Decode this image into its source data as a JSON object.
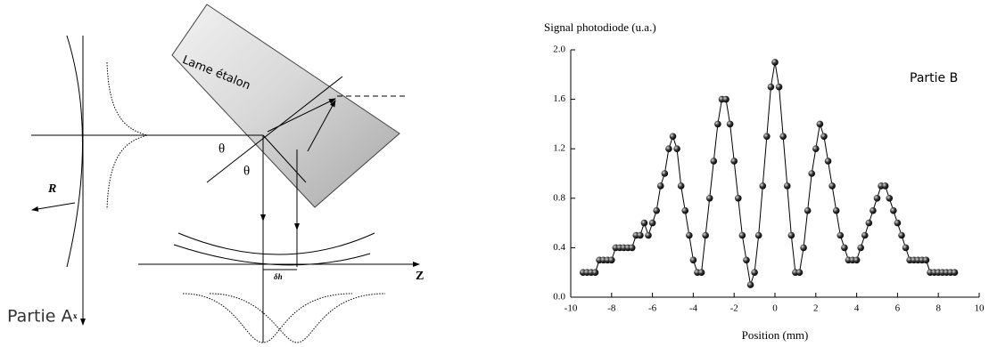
{
  "diagram": {
    "plate_label": "Lame étalon",
    "theta_1": "θ",
    "theta_2": "θ",
    "r_label": "R",
    "x_label": "x",
    "z_label": "Z",
    "dh_label": "δh",
    "part_label": "Partie A"
  },
  "chart_data": {
    "type": "scatter_line",
    "y_label": "Signal photodiode (u.a.)",
    "x_label": "Position (mm)",
    "annotation": "Partie B",
    "color": "#000000",
    "x": [
      -9.4,
      -9.2,
      -9.0,
      -8.8,
      -8.6,
      -8.4,
      -8.2,
      -8.0,
      -7.8,
      -7.6,
      -7.4,
      -7.2,
      -7.0,
      -6.8,
      -6.6,
      -6.4,
      -6.2,
      -6.0,
      -5.8,
      -5.6,
      -5.4,
      -5.2,
      -5.0,
      -4.8,
      -4.6,
      -4.4,
      -4.2,
      -4.0,
      -3.8,
      -3.6,
      -3.4,
      -3.2,
      -3.0,
      -2.8,
      -2.6,
      -2.4,
      -2.2,
      -2.0,
      -1.8,
      -1.6,
      -1.4,
      -1.2,
      -1.0,
      -0.8,
      -0.6,
      -0.4,
      -0.2,
      0,
      0.2,
      0.4,
      0.6,
      0.8,
      1.0,
      1.2,
      1.4,
      1.6,
      1.8,
      2.0,
      2.2,
      2.4,
      2.6,
      2.8,
      3.0,
      3.2,
      3.4,
      3.6,
      3.8,
      4.0,
      4.2,
      4.4,
      4.6,
      4.8,
      5.0,
      5.2,
      5.4,
      5.6,
      5.8,
      6.0,
      6.2,
      6.4,
      6.6,
      6.8,
      7.0,
      7.2,
      7.4,
      7.6,
      7.8,
      8.0,
      8.2,
      8.4,
      8.6,
      8.8
    ],
    "values": [
      0.2,
      0.2,
      0.2,
      0.2,
      0.3,
      0.3,
      0.3,
      0.3,
      0.4,
      0.4,
      0.4,
      0.4,
      0.4,
      0.5,
      0.5,
      0.6,
      0.5,
      0.6,
      0.7,
      0.9,
      1.0,
      1.2,
      1.3,
      1.2,
      0.9,
      0.7,
      0.5,
      0.3,
      0.2,
      0.2,
      0.5,
      0.8,
      1.1,
      1.4,
      1.6,
      1.6,
      1.4,
      1.1,
      0.8,
      0.5,
      0.3,
      0.1,
      0.2,
      0.5,
      0.9,
      1.3,
      1.7,
      1.9,
      1.7,
      1.3,
      0.9,
      0.5,
      0.2,
      0.2,
      0.4,
      0.7,
      1.0,
      1.2,
      1.4,
      1.3,
      1.1,
      0.9,
      0.7,
      0.5,
      0.4,
      0.3,
      0.3,
      0.3,
      0.4,
      0.5,
      0.6,
      0.7,
      0.8,
      0.9,
      0.9,
      0.8,
      0.7,
      0.6,
      0.5,
      0.4,
      0.3,
      0.3,
      0.3,
      0.3,
      0.3,
      0.2,
      0.2,
      0.2,
      0.2,
      0.2,
      0.2,
      0.2
    ],
    "xlim": [
      -10,
      10
    ],
    "xticks": [
      -10,
      -8,
      -6,
      -4,
      -2,
      0,
      2,
      4,
      6,
      8,
      10
    ],
    "ylim": [
      0,
      2
    ],
    "yticks": [
      {
        "value": 0,
        "label": "0.0"
      },
      0.4,
      0.8,
      1.2,
      1.6,
      {
        "value": 2,
        "label": "2.0"
      }
    ]
  }
}
